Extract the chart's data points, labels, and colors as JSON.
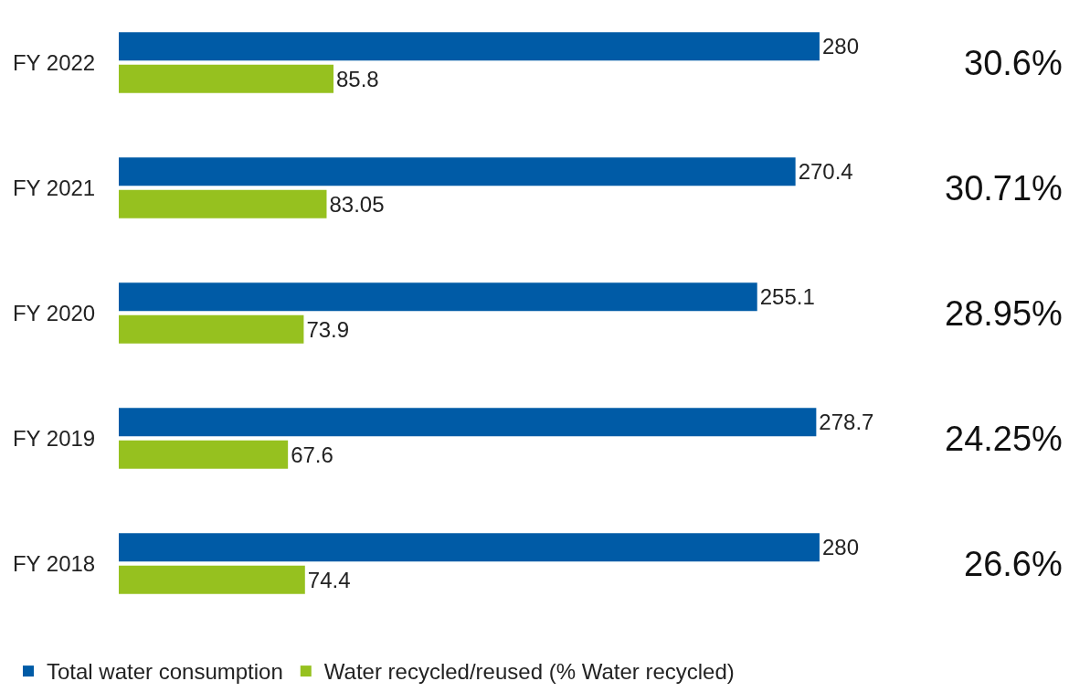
{
  "chart_data": {
    "type": "bar",
    "orientation": "horizontal",
    "categories": [
      "FY 2022",
      "FY 2021",
      "FY 2020",
      "FY 2019",
      "FY 2018"
    ],
    "series": [
      {
        "name": "Total water consumption",
        "color": "#005ba6",
        "values": [
          280,
          270.4,
          255.1,
          278.7,
          280
        ]
      },
      {
        "name": "Water recycled/reused (% Water recycled)",
        "color": "#96c11f",
        "values": [
          85.8,
          83.05,
          73.9,
          67.6,
          74.4
        ]
      }
    ],
    "data_labels": true,
    "legend": "bottom left",
    "annotations": [
      "30.6%",
      "30.71%",
      "28.95%",
      "24.25%",
      "26.6%"
    ]
  }
}
